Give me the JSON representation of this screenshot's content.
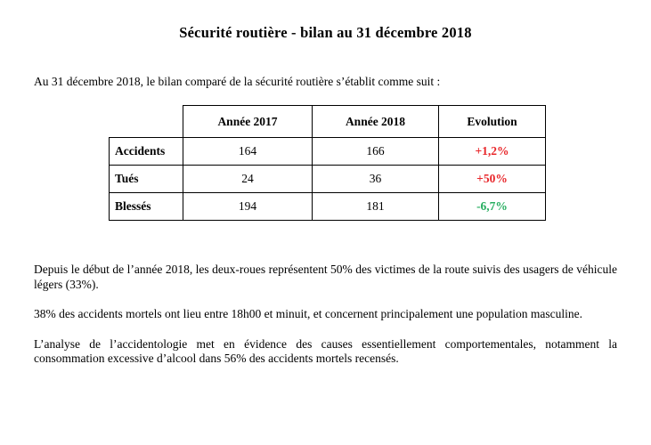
{
  "document": {
    "title": "Sécurité routière - bilan au 31 décembre 2018",
    "intro": "Au 31 décembre 2018, le bilan comparé de la sécurité routière s’établit comme suit :",
    "table": {
      "columns": [
        "Année 2017",
        "Année 2018",
        "Evolution"
      ],
      "rows": [
        {
          "label": "Accidents",
          "y2017": "164",
          "y2018": "166",
          "evolution": "+1,2%",
          "trend": "up"
        },
        {
          "label": "Tués",
          "y2017": "24",
          "y2018": "36",
          "evolution": "+50%",
          "trend": "up"
        },
        {
          "label": "Blessés",
          "y2017": "194",
          "y2018": "181",
          "evolution": "-6,7%",
          "trend": "down"
        }
      ]
    },
    "paragraphs": [
      "Depuis le début de l’année 2018, les deux-roues représentent 50% des victimes de la route suivis des usagers de véhicule légers (33%).",
      "38% des accidents mortels ont lieu entre 18h00 et minuit, et concernent principalement une population masculine.",
      "L’analyse de l’accidentologie met en évidence des causes essentiellement comportementales, notamment la consommation excessive d’alcool dans 56% des accidents mortels recensés."
    ],
    "colors": {
      "increase": "#e8262a",
      "decrease": "#27ae60"
    }
  }
}
